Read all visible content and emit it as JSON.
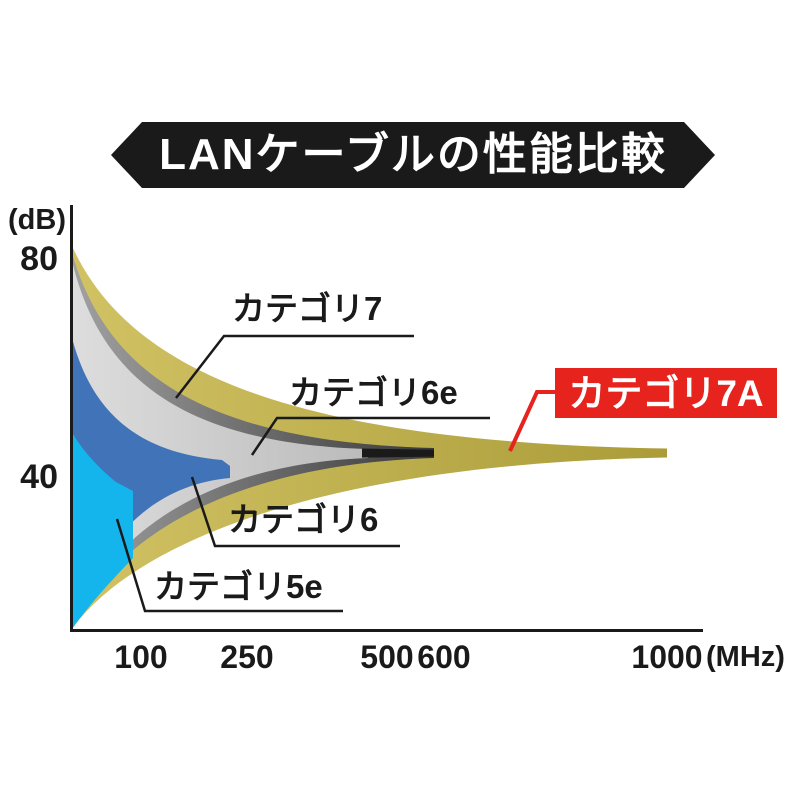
{
  "title": {
    "text": "LANケーブルの性能比較"
  },
  "colors": {
    "ink": "#1a1a1a",
    "highlight_red": "#e7231d",
    "background": "#ffffff",
    "label_text_on_red": "#ffffff"
  },
  "chart_data": {
    "type": "area",
    "title": "LANケーブルの性能比較",
    "x_axis": {
      "unit_label": "(MHz)",
      "ticks": [
        100,
        250,
        500,
        600,
        1000
      ]
    },
    "y_axis": {
      "unit_label": "(dB)",
      "ticks": [
        80,
        40
      ]
    },
    "series": [
      {
        "name": "カテゴリ7A",
        "max_mhz": 1000,
        "color": "#c7b542",
        "highlighted": true
      },
      {
        "name": "カテゴリ7",
        "max_mhz": 600,
        "color": "#787878",
        "highlighted": false
      },
      {
        "name": "カテゴリ6e",
        "max_mhz": 500,
        "color": "#d9d9d9",
        "highlighted": false
      },
      {
        "name": "カテゴリ6",
        "max_mhz": 250,
        "color": "#4173b9",
        "highlighted": false
      },
      {
        "name": "カテゴリ5e",
        "max_mhz": 100,
        "color": "#14b5ec",
        "highlighted": false
      }
    ],
    "legend_position": "inline-callouts",
    "grid": false,
    "notes": "Nested funnel bands: each category's usable signal margin (dB) narrows as frequency (MHz) rises and ends at the category's maximum bandwidth."
  }
}
